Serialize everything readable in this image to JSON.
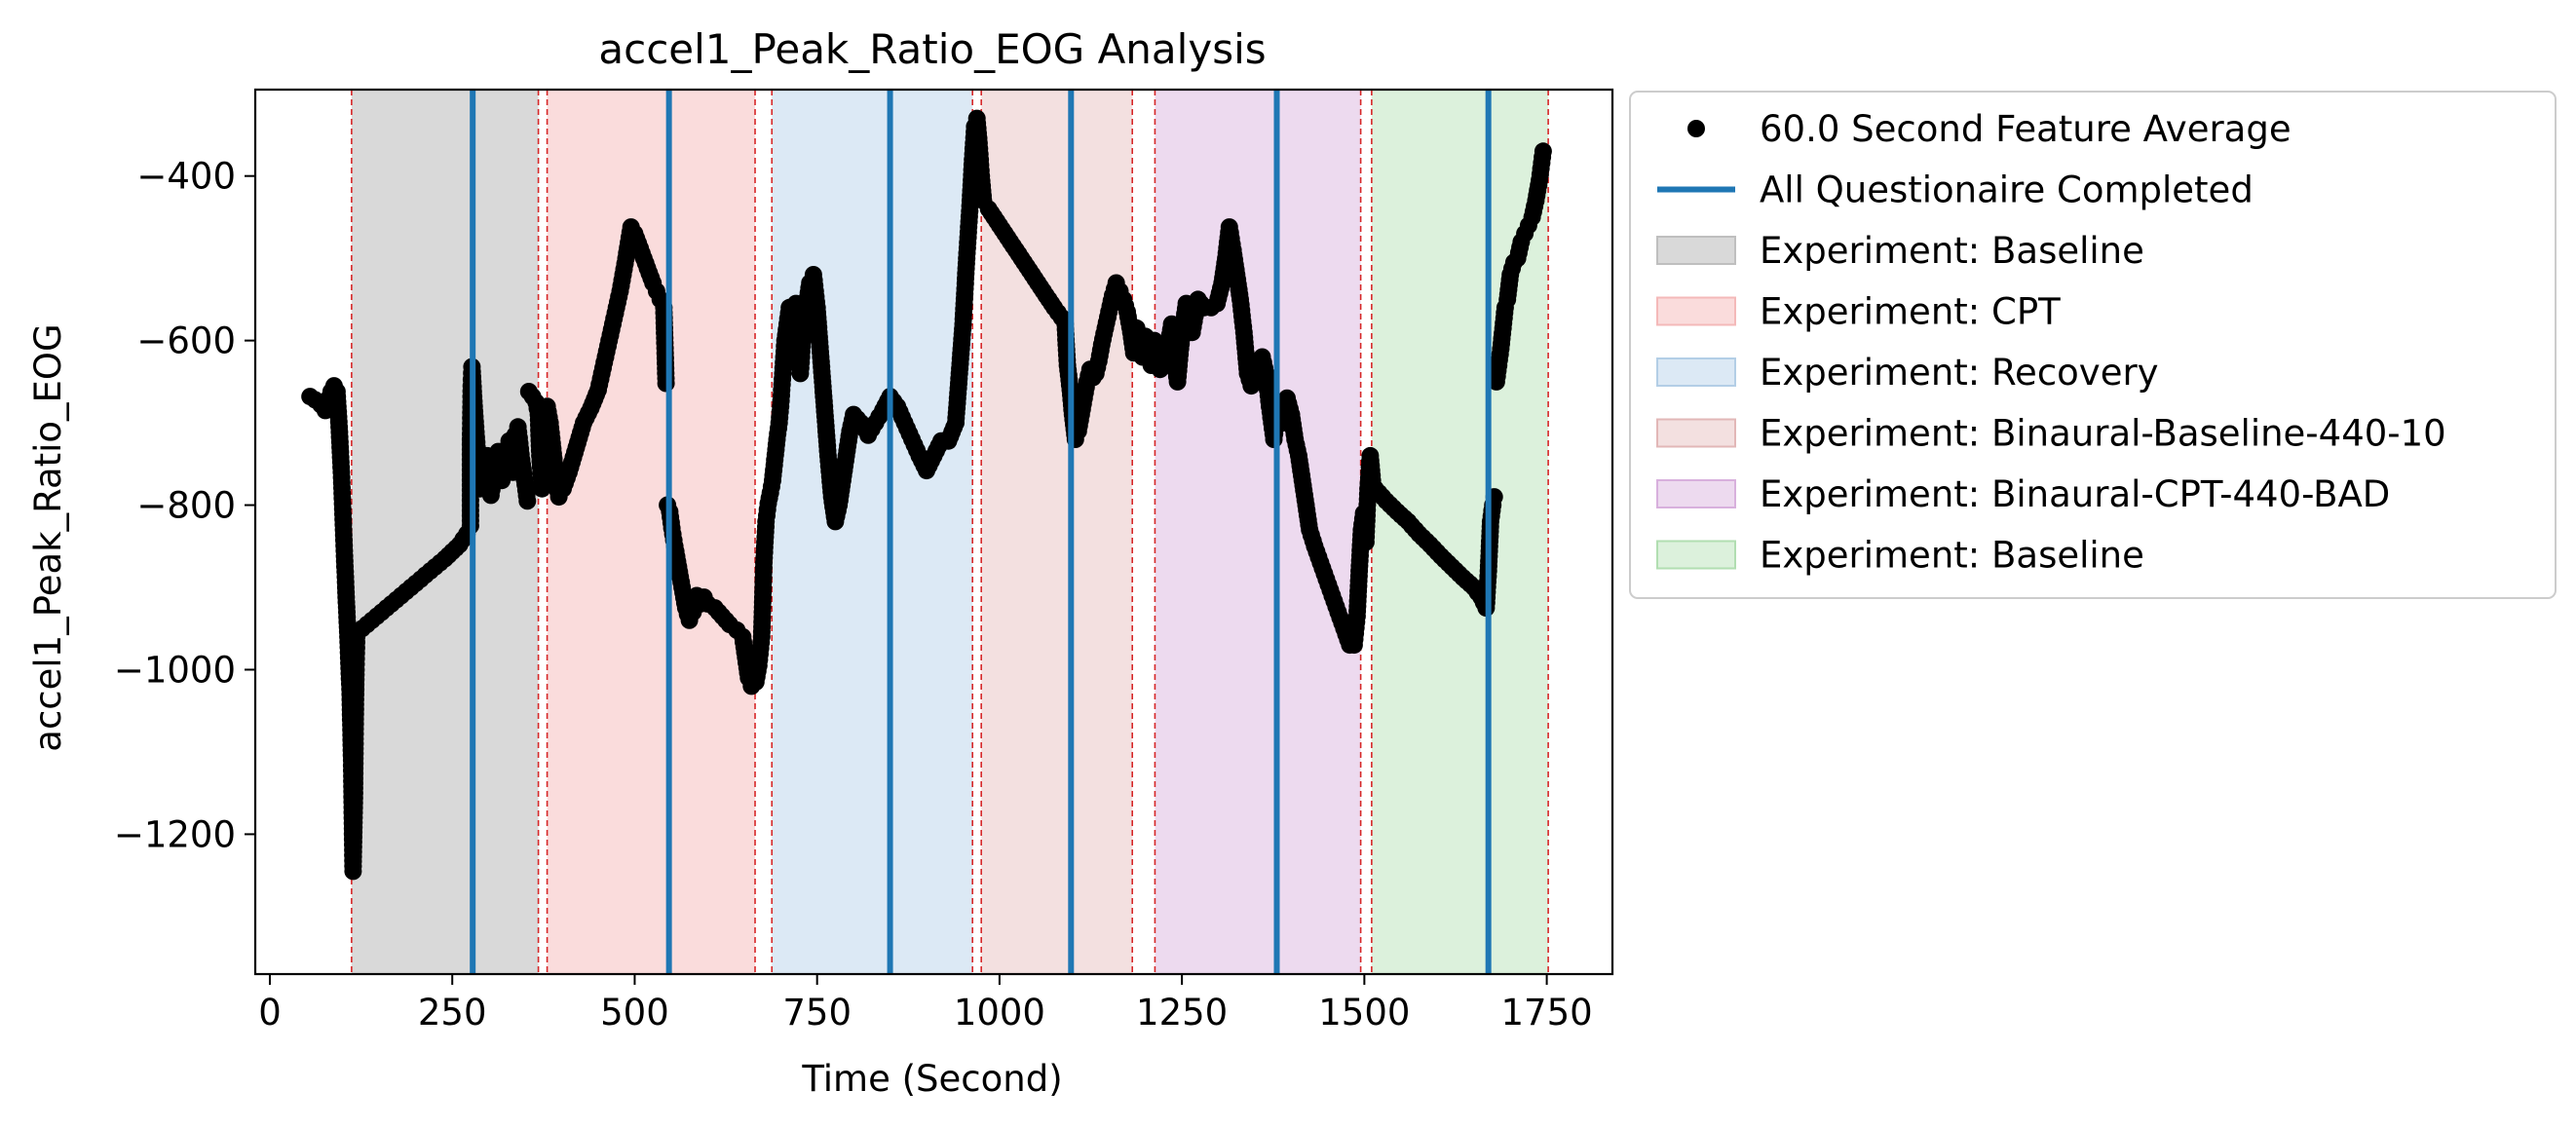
{
  "chart_data": {
    "type": "scatter",
    "title": "accel1_Peak_Ratio_EOG Analysis",
    "xlabel": "Time (Second)",
    "ylabel": "accel1_Peak_Ratio_EOG",
    "xlim": [
      -20,
      1840
    ],
    "ylim": [
      -1370,
      -295
    ],
    "xticks": [
      0,
      250,
      500,
      750,
      1000,
      1250,
      1500,
      1750
    ],
    "yticks": [
      -400,
      -600,
      -800,
      -1000,
      -1200
    ],
    "grid": false,
    "legend_position": "outside-right",
    "marker_color": "#000000",
    "questionnaire_color": "#1f77b4",
    "boundary_color": "#d62728",
    "phases": [
      {
        "label": "Experiment: Baseline",
        "start": 112,
        "end": 368,
        "color": "#c4c4c4",
        "legend_color": "#bfbfbf"
      },
      {
        "label": "Experiment: CPT",
        "start": 380,
        "end": 665,
        "color": "#f7caca",
        "legend_color": "#f4b9b9"
      },
      {
        "label": "Experiment: Recovery",
        "start": 688,
        "end": 963,
        "color": "#c9ddef",
        "legend_color": "#b3cee6"
      },
      {
        "label": "Experiment: Binaural-Baseline-440-10",
        "start": 975,
        "end": 1182,
        "color": "#ecd0d0",
        "legend_color": "#e2b7b7"
      },
      {
        "label": "Experiment: Binaural-CPT-440-BAD",
        "start": 1213,
        "end": 1495,
        "color": "#e3c6e6",
        "legend_color": "#d8b0dd"
      },
      {
        "label": "Experiment: Baseline",
        "start": 1510,
        "end": 1752,
        "color": "#c9e9c9",
        "legend_color": "#b1deb1"
      }
    ],
    "boundaries": [
      112,
      368,
      380,
      665,
      688,
      963,
      975,
      1182,
      1213,
      1495,
      1510,
      1752
    ],
    "questionnaires": [
      278,
      547,
      850,
      1098,
      1380,
      1670
    ],
    "series": [
      {
        "name": "60.0 Second Feature Average",
        "points": [
          [
            55,
            -668
          ],
          [
            62,
            -672
          ],
          [
            70,
            -678
          ],
          [
            76,
            -685
          ],
          [
            80,
            -675
          ],
          [
            84,
            -662
          ],
          [
            88,
            -655
          ],
          [
            92,
            -662
          ],
          [
            95,
            -705
          ],
          [
            98,
            -760
          ],
          [
            101,
            -830
          ],
          [
            104,
            -900
          ],
          [
            107,
            -960
          ],
          [
            110,
            -1030
          ],
          [
            112,
            -1110
          ],
          [
            113,
            -1180
          ],
          [
            114,
            -1245
          ],
          [
            116,
            -1150
          ],
          [
            117,
            -1060
          ],
          [
            118,
            -1000
          ],
          [
            119,
            -960
          ],
          [
            120,
            -955
          ],
          [
            140,
            -940
          ],
          [
            160,
            -925
          ],
          [
            180,
            -910
          ],
          [
            200,
            -895
          ],
          [
            220,
            -880
          ],
          [
            240,
            -865
          ],
          [
            260,
            -848
          ],
          [
            270,
            -835
          ],
          [
            275,
            -825
          ],
          [
            275,
            -720
          ],
          [
            276,
            -655
          ],
          [
            277,
            -632
          ],
          [
            280,
            -680
          ],
          [
            284,
            -730
          ],
          [
            288,
            -780
          ],
          [
            293,
            -770
          ],
          [
            298,
            -740
          ],
          [
            303,
            -788
          ],
          [
            308,
            -760
          ],
          [
            313,
            -735
          ],
          [
            318,
            -770
          ],
          [
            323,
            -745
          ],
          [
            328,
            -722
          ],
          [
            333,
            -760
          ],
          [
            336,
            -715
          ],
          [
            340,
            -705
          ],
          [
            345,
            -745
          ],
          [
            350,
            -775
          ],
          [
            353,
            -795
          ],
          [
            355,
            -662
          ],
          [
            360,
            -668
          ],
          [
            365,
            -675
          ],
          [
            368,
            -690
          ],
          [
            370,
            -740
          ],
          [
            373,
            -780
          ],
          [
            376,
            -755
          ],
          [
            380,
            -680
          ],
          [
            384,
            -700
          ],
          [
            390,
            -750
          ],
          [
            396,
            -790
          ],
          [
            402,
            -780
          ],
          [
            410,
            -760
          ],
          [
            420,
            -730
          ],
          [
            430,
            -700
          ],
          [
            440,
            -682
          ],
          [
            450,
            -660
          ],
          [
            460,
            -620
          ],
          [
            470,
            -580
          ],
          [
            480,
            -540
          ],
          [
            488,
            -500
          ],
          [
            495,
            -462
          ],
          [
            500,
            -470
          ],
          [
            505,
            -482
          ],
          [
            510,
            -494
          ],
          [
            515,
            -506
          ],
          [
            520,
            -518
          ],
          [
            525,
            -530
          ],
          [
            530,
            -540
          ],
          [
            535,
            -550
          ],
          [
            540,
            -560
          ],
          [
            543,
            -652
          ],
          [
            545,
            -800
          ],
          [
            548,
            -808
          ],
          [
            551,
            -828
          ],
          [
            555,
            -850
          ],
          [
            560,
            -875
          ],
          [
            565,
            -900
          ],
          [
            570,
            -925
          ],
          [
            575,
            -940
          ],
          [
            580,
            -930
          ],
          [
            585,
            -910
          ],
          [
            590,
            -920
          ],
          [
            595,
            -912
          ],
          [
            600,
            -920
          ],
          [
            610,
            -925
          ],
          [
            620,
            -935
          ],
          [
            630,
            -945
          ],
          [
            640,
            -952
          ],
          [
            648,
            -960
          ],
          [
            652,
            -985
          ],
          [
            656,
            -1010
          ],
          [
            660,
            -1020
          ],
          [
            663,
            -1005
          ],
          [
            666,
            -1015
          ],
          [
            670,
            -995
          ],
          [
            674,
            -960
          ],
          [
            677,
            -870
          ],
          [
            680,
            -820
          ],
          [
            683,
            -798
          ],
          [
            686,
            -785
          ],
          [
            689,
            -770
          ],
          [
            692,
            -745
          ],
          [
            695,
            -720
          ],
          [
            698,
            -700
          ],
          [
            700,
            -680
          ],
          [
            703,
            -640
          ],
          [
            706,
            -600
          ],
          [
            709,
            -580
          ],
          [
            712,
            -560
          ],
          [
            715,
            -620
          ],
          [
            718,
            -580
          ],
          [
            721,
            -555
          ],
          [
            724,
            -600
          ],
          [
            727,
            -640
          ],
          [
            730,
            -600
          ],
          [
            735,
            -560
          ],
          [
            740,
            -530
          ],
          [
            745,
            -520
          ],
          [
            750,
            -560
          ],
          [
            755,
            -620
          ],
          [
            760,
            -680
          ],
          [
            765,
            -740
          ],
          [
            770,
            -790
          ],
          [
            775,
            -820
          ],
          [
            780,
            -800
          ],
          [
            785,
            -770
          ],
          [
            790,
            -740
          ],
          [
            795,
            -710
          ],
          [
            800,
            -690
          ],
          [
            810,
            -700
          ],
          [
            820,
            -715
          ],
          [
            830,
            -700
          ],
          [
            840,
            -685
          ],
          [
            850,
            -668
          ],
          [
            860,
            -680
          ],
          [
            870,
            -700
          ],
          [
            880,
            -720
          ],
          [
            890,
            -740
          ],
          [
            900,
            -758
          ],
          [
            910,
            -740
          ],
          [
            920,
            -722
          ],
          [
            930,
            -722
          ],
          [
            940,
            -700
          ],
          [
            945,
            -640
          ],
          [
            950,
            -580
          ],
          [
            955,
            -500
          ],
          [
            960,
            -430
          ],
          [
            963,
            -380
          ],
          [
            966,
            -340
          ],
          [
            969,
            -330
          ],
          [
            972,
            -360
          ],
          [
            975,
            -400
          ],
          [
            978,
            -430
          ],
          [
            985,
            -440
          ],
          [
            1000,
            -460
          ],
          [
            1015,
            -480
          ],
          [
            1030,
            -500
          ],
          [
            1045,
            -520
          ],
          [
            1060,
            -540
          ],
          [
            1075,
            -560
          ],
          [
            1085,
            -572
          ],
          [
            1090,
            -580
          ],
          [
            1093,
            -630
          ],
          [
            1097,
            -660
          ],
          [
            1100,
            -690
          ],
          [
            1104,
            -720
          ],
          [
            1108,
            -710
          ],
          [
            1112,
            -690
          ],
          [
            1116,
            -670
          ],
          [
            1120,
            -650
          ],
          [
            1124,
            -635
          ],
          [
            1128,
            -645
          ],
          [
            1132,
            -640
          ],
          [
            1136,
            -625
          ],
          [
            1140,
            -605
          ],
          [
            1145,
            -585
          ],
          [
            1150,
            -565
          ],
          [
            1155,
            -545
          ],
          [
            1160,
            -530
          ],
          [
            1165,
            -540
          ],
          [
            1170,
            -550
          ],
          [
            1175,
            -565
          ],
          [
            1180,
            -590
          ],
          [
            1184,
            -615
          ],
          [
            1188,
            -585
          ],
          [
            1192,
            -600
          ],
          [
            1196,
            -620
          ],
          [
            1200,
            -595
          ],
          [
            1204,
            -615
          ],
          [
            1208,
            -630
          ],
          [
            1212,
            -600
          ],
          [
            1216,
            -620
          ],
          [
            1220,
            -635
          ],
          [
            1224,
            -610
          ],
          [
            1228,
            -620
          ],
          [
            1232,
            -600
          ],
          [
            1236,
            -580
          ],
          [
            1240,
            -625
          ],
          [
            1244,
            -650
          ],
          [
            1248,
            -610
          ],
          [
            1252,
            -580
          ],
          [
            1256,
            -555
          ],
          [
            1260,
            -570
          ],
          [
            1264,
            -590
          ],
          [
            1268,
            -570
          ],
          [
            1272,
            -550
          ],
          [
            1280,
            -560
          ],
          [
            1290,
            -560
          ],
          [
            1298,
            -555
          ],
          [
            1305,
            -530
          ],
          [
            1310,
            -500
          ],
          [
            1315,
            -462
          ],
          [
            1320,
            -490
          ],
          [
            1325,
            -520
          ],
          [
            1330,
            -550
          ],
          [
            1335,
            -590
          ],
          [
            1340,
            -640
          ],
          [
            1345,
            -655
          ],
          [
            1350,
            -640
          ],
          [
            1355,
            -650
          ],
          [
            1360,
            -620
          ],
          [
            1365,
            -640
          ],
          [
            1370,
            -680
          ],
          [
            1376,
            -720
          ],
          [
            1382,
            -680
          ],
          [
            1388,
            -700
          ],
          [
            1394,
            -670
          ],
          [
            1400,
            -690
          ],
          [
            1405,
            -720
          ],
          [
            1410,
            -740
          ],
          [
            1415,
            -770
          ],
          [
            1420,
            -800
          ],
          [
            1425,
            -830
          ],
          [
            1432,
            -850
          ],
          [
            1440,
            -870
          ],
          [
            1448,
            -890
          ],
          [
            1456,
            -910
          ],
          [
            1464,
            -930
          ],
          [
            1472,
            -950
          ],
          [
            1480,
            -970
          ],
          [
            1486,
            -970
          ],
          [
            1490,
            -935
          ],
          [
            1493,
            -880
          ],
          [
            1496,
            -830
          ],
          [
            1499,
            -810
          ],
          [
            1502,
            -845
          ],
          [
            1505,
            -780
          ],
          [
            1508,
            -740
          ],
          [
            1511,
            -770
          ],
          [
            1515,
            -780
          ],
          [
            1530,
            -795
          ],
          [
            1545,
            -808
          ],
          [
            1560,
            -820
          ],
          [
            1575,
            -835
          ],
          [
            1590,
            -848
          ],
          [
            1605,
            -862
          ],
          [
            1620,
            -875
          ],
          [
            1635,
            -888
          ],
          [
            1650,
            -900
          ],
          [
            1660,
            -912
          ],
          [
            1667,
            -925
          ],
          [
            1670,
            -880
          ],
          [
            1673,
            -820
          ],
          [
            1676,
            -800
          ],
          [
            1678,
            -790
          ],
          [
            1681,
            -650
          ],
          [
            1684,
            -630
          ],
          [
            1687,
            -610
          ],
          [
            1690,
            -585
          ],
          [
            1693,
            -560
          ],
          [
            1696,
            -550
          ],
          [
            1700,
            -520
          ],
          [
            1705,
            -505
          ],
          [
            1710,
            -500
          ],
          [
            1715,
            -480
          ],
          [
            1720,
            -470
          ],
          [
            1725,
            -460
          ],
          [
            1730,
            -450
          ],
          [
            1735,
            -430
          ],
          [
            1740,
            -405
          ],
          [
            1745,
            -370
          ]
        ]
      }
    ],
    "legend": {
      "points_label": "60.0 Second Feature Average",
      "questionnaire_label": "All Questionaire Completed"
    }
  }
}
